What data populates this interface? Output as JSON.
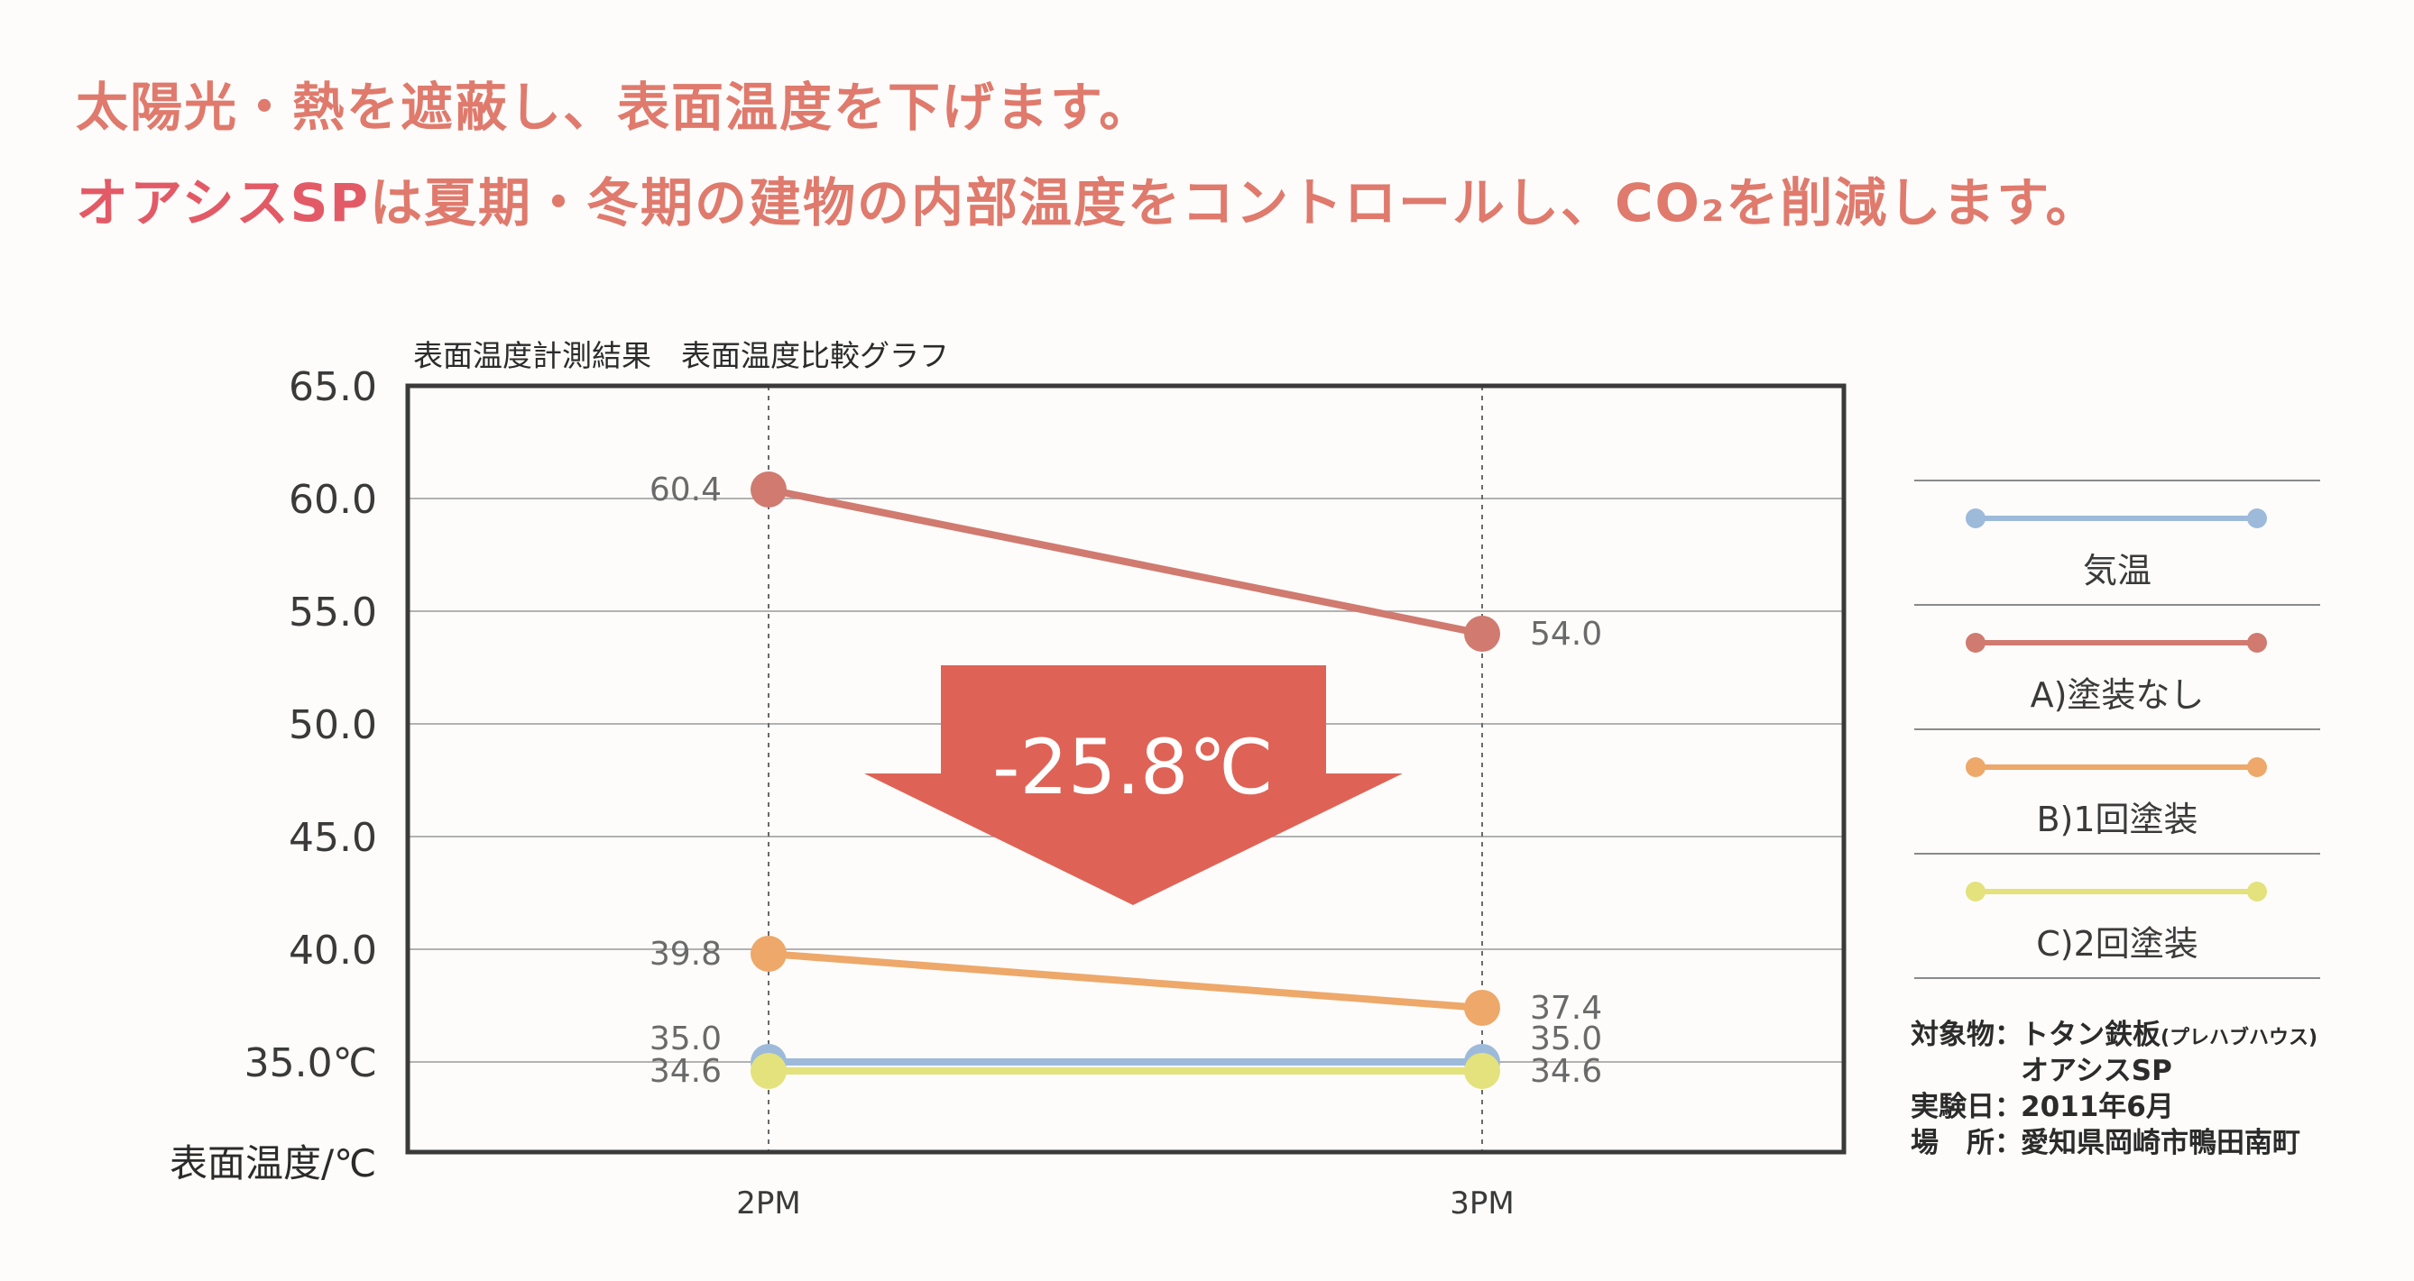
{
  "headline": {
    "line1": "太陽光・熱を遮蔽し、表面温度を下げます。",
    "line2_highlight": "オアシスSP",
    "line2_rest": "は夏期・冬期の建物の内部温度をコントロールし、CO₂を削減します。"
  },
  "chart_data": {
    "type": "line",
    "title": "表面温度計測結果　表面温度比較グラフ",
    "xlabel": "",
    "ylabel": "表面温度/℃",
    "categories": [
      "2PM",
      "3PM"
    ],
    "ylim": [
      31.0,
      65.0
    ],
    "yticks": [
      65.0,
      60.0,
      55.0,
      50.0,
      45.0,
      40.0,
      35.0
    ],
    "ytick_labels": [
      "65.0",
      "60.0",
      "55.0",
      "50.0",
      "45.0",
      "40.0",
      "35.0℃"
    ],
    "grid": true,
    "series": [
      {
        "name": "気温",
        "color": "#9dbadb",
        "values": [
          35.0,
          35.0
        ],
        "labels": [
          "35.0",
          "35.0"
        ]
      },
      {
        "name": "A)塗装なし",
        "color": "#d07a70",
        "values": [
          60.4,
          54.0
        ],
        "labels": [
          "60.4",
          "54.0"
        ]
      },
      {
        "name": "B)1回塗装",
        "color": "#eda86a",
        "values": [
          39.8,
          37.4
        ],
        "labels": [
          "39.8",
          "37.4"
        ]
      },
      {
        "name": "C)2回塗装",
        "color": "#e3e27c",
        "values": [
          34.6,
          34.6
        ],
        "labels": [
          "34.6",
          "34.6"
        ]
      }
    ],
    "annotation": {
      "text": "-25.8℃",
      "color": "#de6356"
    },
    "legend_position": "right"
  },
  "info": {
    "subject_label": "対象物：",
    "subject_value": "トタン鉄板",
    "subject_note": "(プレハブハウス)",
    "subject_value2": "オアシスSP",
    "date_label": "実験日：",
    "date_value": "2011年6月",
    "place_label": "場　所：",
    "place_value": "愛知県岡崎市鴨田南町"
  }
}
